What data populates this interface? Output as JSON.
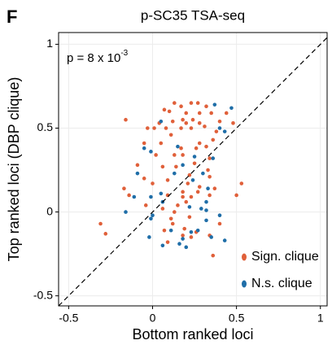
{
  "panel_label": "F",
  "chart_data": {
    "type": "scatter",
    "title": "p-SC35 TSA-seq",
    "xlabel": "Bottom ranked loci",
    "ylabel": "Top ranked loci (DBP clique)",
    "annotation": "p = 8 x 10",
    "annotation_exponent": "-3",
    "xlim": [
      -0.56,
      1.04
    ],
    "ylim": [
      -0.56,
      1.07
    ],
    "xticks": [
      -0.5,
      0,
      0.5,
      1
    ],
    "yticks": [
      -0.5,
      0,
      0.5,
      1
    ],
    "grid": true,
    "legend": "lower right",
    "series": [
      {
        "name": "Sign. clique",
        "color": "#e0603a",
        "x": [
          0.13,
          0.17,
          0.23,
          0.27,
          0.32,
          0.2,
          0.07,
          0.1,
          0.28,
          0.35,
          0.44,
          0.12,
          0.18,
          0.24,
          -0.16,
          0.04,
          0.2,
          0.28,
          0.4,
          0.48,
          -0.03,
          0.01,
          0.08,
          0.17,
          0.23,
          0.31,
          0.38,
          0.11,
          -0.05,
          0.05,
          0.28,
          0.36,
          0.17,
          0.26,
          0.32,
          0.02,
          0.13,
          0.18,
          0.34,
          -0.09,
          0.06,
          0.14,
          0.25,
          0.33,
          0.22,
          0.34,
          -0.05,
          0.09,
          0.0,
          0.21,
          0.28,
          0.37,
          -0.17,
          0.18,
          0.27,
          0.53,
          -0.14,
          0.09,
          0.18,
          0.23,
          0.34,
          0.5,
          -0.04,
          0.15,
          0.2,
          0.06,
          0.13,
          0.22,
          0.11,
          0.12,
          0.19,
          0.26,
          0.4,
          -0.31,
          -0.28,
          0.07,
          0.18,
          0.23,
          0.34,
          0.09,
          0.36
        ],
        "values": [
          0.65,
          0.63,
          0.65,
          0.65,
          0.63,
          0.59,
          0.61,
          0.6,
          0.59,
          0.59,
          0.59,
          0.54,
          0.55,
          0.55,
          0.55,
          0.53,
          0.53,
          0.53,
          0.54,
          0.53,
          0.5,
          0.5,
          0.5,
          0.5,
          0.5,
          0.51,
          0.48,
          0.46,
          0.41,
          0.41,
          0.41,
          0.43,
          0.38,
          0.38,
          0.39,
          0.34,
          0.34,
          0.34,
          0.32,
          0.28,
          0.27,
          0.27,
          0.29,
          0.25,
          0.22,
          0.21,
          0.2,
          0.19,
          0.17,
          0.17,
          0.15,
          0.14,
          0.14,
          0.12,
          0.12,
          0.17,
          0.1,
          0.1,
          0.09,
          0.09,
          0.1,
          0.1,
          0.04,
          0.04,
          0.06,
          0.02,
          0.0,
          -0.03,
          -0.04,
          -0.07,
          -0.1,
          -0.12,
          -0.07,
          -0.07,
          -0.13,
          -0.11,
          -0.14,
          -0.15,
          -0.14,
          -0.18,
          -0.26
        ]
      },
      {
        "name": "N.s. clique",
        "color": "#1f6ea8",
        "x": [
          0.37,
          0.47,
          0.05,
          0.4,
          0.43,
          -0.05,
          -0.01,
          0.15,
          0.25,
          0.18,
          0.13,
          0.36,
          0.3,
          0.24,
          -0.09,
          -0.11,
          -0.01,
          0.06,
          -0.16,
          0.05,
          0.22,
          0.32,
          0.32,
          0.32,
          0.33,
          0.29,
          0.4,
          0.0,
          0.11,
          -0.02,
          0.27,
          0.35,
          0.06,
          0.18,
          0.16,
          0.2,
          0.43,
          0.23,
          -0.01
        ],
        "values": [
          0.64,
          0.62,
          0.54,
          0.5,
          0.48,
          0.38,
          0.36,
          0.39,
          0.33,
          0.28,
          0.23,
          0.32,
          0.23,
          0.19,
          0.23,
          0.09,
          0.09,
          0.06,
          0.0,
          0.11,
          0.03,
          0.01,
          -0.05,
          0.06,
          0.14,
          0.02,
          -0.02,
          -0.02,
          -0.11,
          -0.15,
          -0.11,
          -0.15,
          -0.2,
          -0.16,
          -0.19,
          -0.21,
          -0.17,
          -0.12,
          -0.04
        ]
      }
    ]
  }
}
